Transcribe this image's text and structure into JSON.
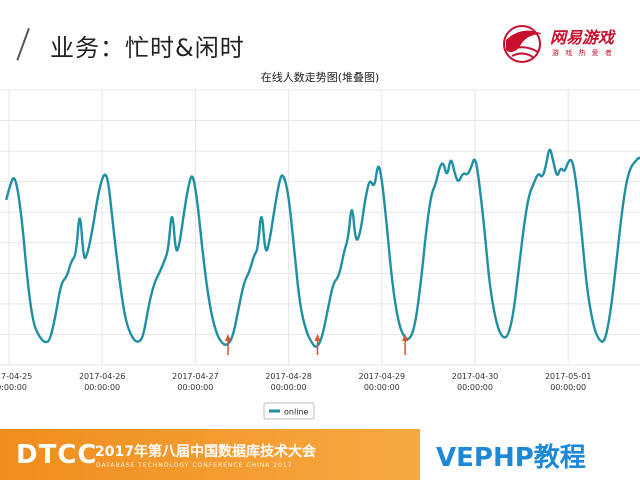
{
  "slide": {
    "title": "业务：忙时&闲时"
  },
  "logo": {
    "name": "网易游戏",
    "tagline": "游 戏 热 爱 者"
  },
  "chart_data": {
    "type": "line",
    "title": "在线人数走势图(堆叠图)",
    "xlabel": "",
    "ylabel": "",
    "x_ticks": [
      [
        "2017-04-25",
        "00:00:00"
      ],
      [
        "2017-04-26",
        "00:00:00"
      ],
      [
        "2017-04-27",
        "00:00:00"
      ],
      [
        "2017-04-28",
        "00:00:00"
      ],
      [
        "2017-04-29",
        "00:00:00"
      ],
      [
        "2017-04-30",
        "00:00:00"
      ],
      [
        "2017-05-01",
        "00:00:00"
      ]
    ],
    "x_range_days": [
      -0.03,
      6.9
    ],
    "ylim": [
      0,
      100
    ],
    "grid": true,
    "legend": "bottom-center",
    "series": [
      {
        "name": "online",
        "color": "#1f8fa3",
        "points": [
          [
            -0.03,
            60
          ],
          [
            0.0,
            64
          ],
          [
            0.06,
            70
          ],
          [
            0.13,
            56
          ],
          [
            0.2,
            30
          ],
          [
            0.26,
            15
          ],
          [
            0.33,
            10
          ],
          [
            0.39,
            8
          ],
          [
            0.44,
            9
          ],
          [
            0.5,
            18
          ],
          [
            0.56,
            30
          ],
          [
            0.62,
            32
          ],
          [
            0.67,
            38
          ],
          [
            0.72,
            40
          ],
          [
            0.76,
            58
          ],
          [
            0.8,
            38
          ],
          [
            0.84,
            40
          ],
          [
            0.9,
            50
          ],
          [
            0.96,
            63
          ],
          [
            1.02,
            70
          ],
          [
            1.06,
            68
          ],
          [
            1.1,
            56
          ],
          [
            1.18,
            32
          ],
          [
            1.25,
            16
          ],
          [
            1.32,
            10
          ],
          [
            1.38,
            8
          ],
          [
            1.44,
            10
          ],
          [
            1.5,
            22
          ],
          [
            1.56,
            30
          ],
          [
            1.62,
            34
          ],
          [
            1.67,
            38
          ],
          [
            1.71,
            42
          ],
          [
            1.75,
            58
          ],
          [
            1.79,
            40
          ],
          [
            1.83,
            44
          ],
          [
            1.88,
            56
          ],
          [
            1.93,
            66
          ],
          [
            1.97,
            70
          ],
          [
            2.02,
            60
          ],
          [
            2.08,
            40
          ],
          [
            2.15,
            22
          ],
          [
            2.22,
            12
          ],
          [
            2.28,
            8
          ],
          [
            2.34,
            7
          ],
          [
            2.4,
            10
          ],
          [
            2.46,
            20
          ],
          [
            2.52,
            30
          ],
          [
            2.58,
            34
          ],
          [
            2.63,
            40
          ],
          [
            2.67,
            42
          ],
          [
            2.71,
            58
          ],
          [
            2.75,
            40
          ],
          [
            2.79,
            44
          ],
          [
            2.84,
            55
          ],
          [
            2.9,
            67
          ],
          [
            2.94,
            70
          ],
          [
            3.0,
            62
          ],
          [
            3.06,
            42
          ],
          [
            3.12,
            22
          ],
          [
            3.19,
            12
          ],
          [
            3.25,
            8
          ],
          [
            3.3,
            6
          ],
          [
            3.36,
            10
          ],
          [
            3.42,
            20
          ],
          [
            3.48,
            30
          ],
          [
            3.54,
            32
          ],
          [
            3.6,
            42
          ],
          [
            3.64,
            46
          ],
          [
            3.68,
            60
          ],
          [
            3.72,
            44
          ],
          [
            3.77,
            48
          ],
          [
            3.82,
            60
          ],
          [
            3.87,
            68
          ],
          [
            3.92,
            64
          ],
          [
            3.96,
            74
          ],
          [
            4.0,
            68
          ],
          [
            4.05,
            52
          ],
          [
            4.11,
            30
          ],
          [
            4.18,
            15
          ],
          [
            4.24,
            10
          ],
          [
            4.3,
            9
          ],
          [
            4.36,
            15
          ],
          [
            4.42,
            30
          ],
          [
            4.48,
            50
          ],
          [
            4.53,
            62
          ],
          [
            4.58,
            66
          ],
          [
            4.62,
            72
          ],
          [
            4.66,
            74
          ],
          [
            4.7,
            68
          ],
          [
            4.74,
            76
          ],
          [
            4.78,
            70
          ],
          [
            4.82,
            66
          ],
          [
            4.87,
            70
          ],
          [
            4.92,
            69
          ],
          [
            4.96,
            72
          ],
          [
            5.0,
            76
          ],
          [
            5.04,
            68
          ],
          [
            5.1,
            50
          ],
          [
            5.16,
            28
          ],
          [
            5.23,
            15
          ],
          [
            5.29,
            10
          ],
          [
            5.35,
            10
          ],
          [
            5.41,
            18
          ],
          [
            5.47,
            35
          ],
          [
            5.53,
            52
          ],
          [
            5.58,
            62
          ],
          [
            5.63,
            66
          ],
          [
            5.68,
            70
          ],
          [
            5.72,
            68
          ],
          [
            5.76,
            72
          ],
          [
            5.8,
            80
          ],
          [
            5.84,
            74
          ],
          [
            5.88,
            68
          ],
          [
            5.92,
            72
          ],
          [
            5.96,
            70
          ],
          [
            6.0,
            74
          ],
          [
            6.04,
            75
          ],
          [
            6.08,
            68
          ],
          [
            6.14,
            50
          ],
          [
            6.2,
            28
          ],
          [
            6.27,
            14
          ],
          [
            6.33,
            9
          ],
          [
            6.39,
            8
          ],
          [
            6.45,
            18
          ],
          [
            6.51,
            35
          ],
          [
            6.57,
            54
          ],
          [
            6.62,
            66
          ],
          [
            6.67,
            72
          ],
          [
            6.72,
            74
          ],
          [
            6.77,
            76
          ],
          [
            6.82,
            72
          ],
          [
            6.86,
            66
          ],
          [
            6.9,
            64
          ]
        ]
      }
    ],
    "annotations": [
      {
        "type": "arrow-up",
        "x": 2.35,
        "color": "#d9552b"
      },
      {
        "type": "arrow-up",
        "x": 3.31,
        "color": "#d9552b"
      },
      {
        "type": "arrow-up",
        "x": 4.25,
        "color": "#d9552b"
      }
    ]
  },
  "footer": {
    "brand": "DTCC",
    "conference": "2017年第八届中国数据库技术大会",
    "conference_sub": "DATABASE TECHNOLOGY CONFERENCE CHINA 2017",
    "watermark": "VEPHP教程"
  }
}
